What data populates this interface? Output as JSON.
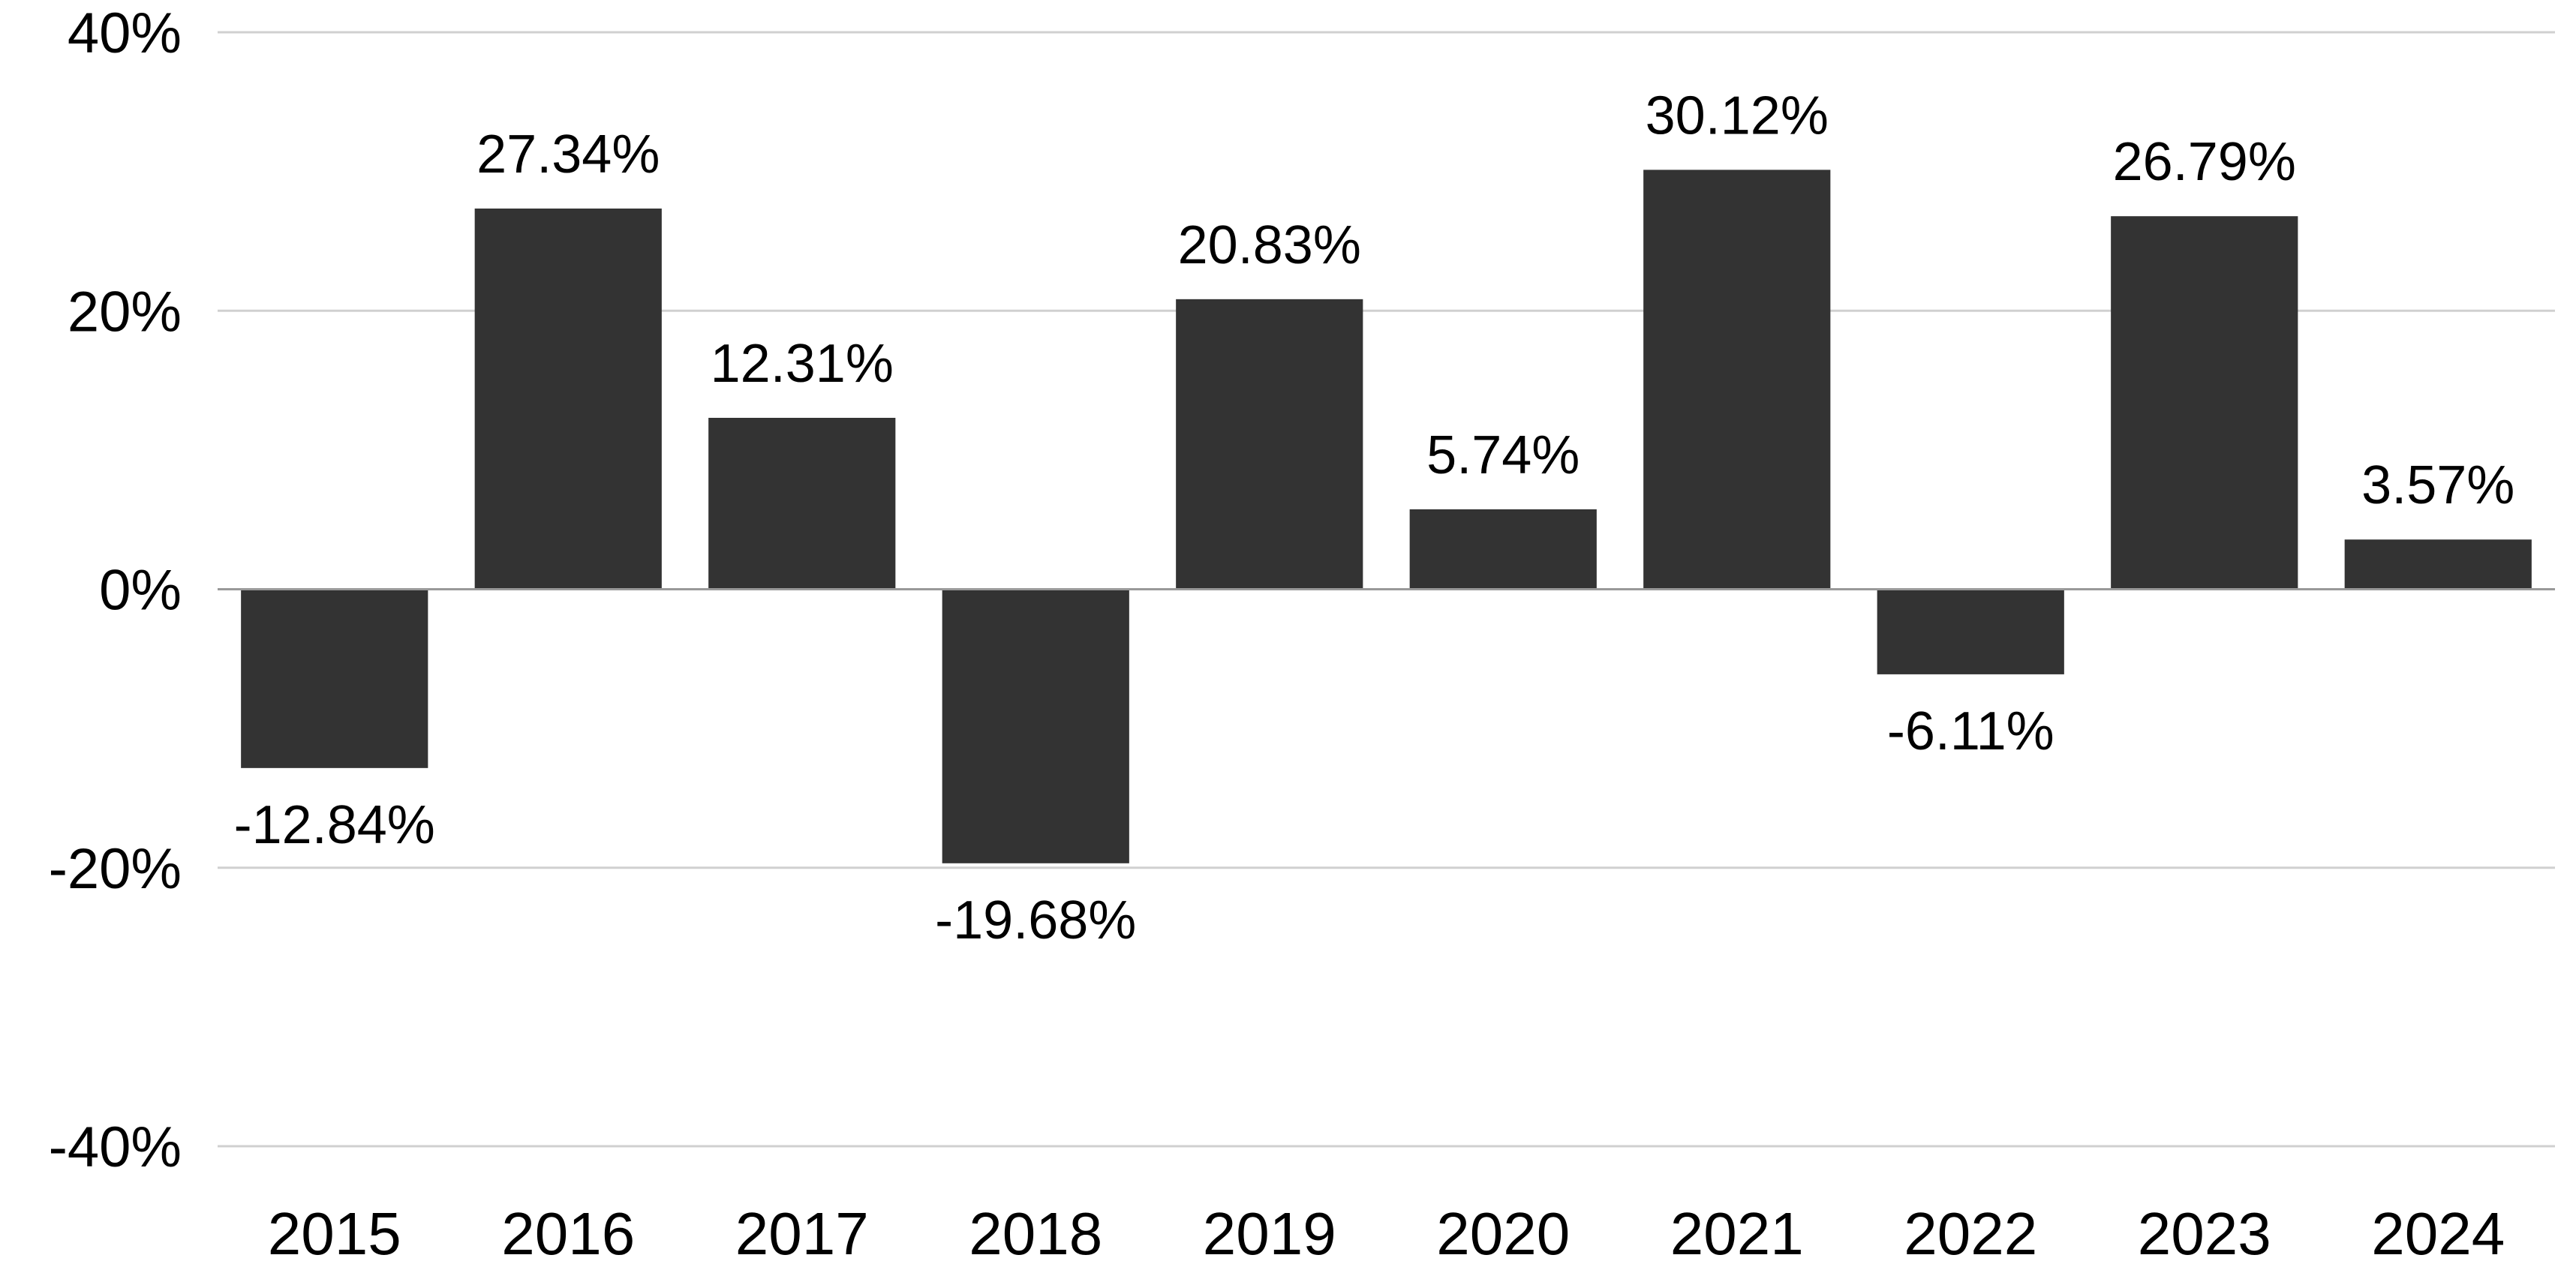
{
  "chart_data": {
    "type": "bar",
    "categories": [
      "2015",
      "2016",
      "2017",
      "2018",
      "2019",
      "2020",
      "2021",
      "2022",
      "2023",
      "2024"
    ],
    "values": [
      -12.84,
      27.34,
      12.31,
      -19.68,
      20.83,
      5.74,
      30.12,
      -6.11,
      26.79,
      3.57
    ],
    "data_labels": [
      "-12.84%",
      "27.34%",
      "12.31%",
      "-19.68%",
      "20.83%",
      "5.74%",
      "30.12%",
      "-6.11%",
      "26.79%",
      "3.57%"
    ],
    "y_ticks": [
      40,
      20,
      0,
      -20,
      -40
    ],
    "y_tick_labels": [
      "40%",
      "20%",
      "0%",
      "-20%",
      "-40%"
    ],
    "ylim": [
      -40,
      40
    ],
    "grid": true,
    "bar_color": "#333333",
    "grid_color": "#d0d0d0",
    "baseline_color": "#999999"
  }
}
